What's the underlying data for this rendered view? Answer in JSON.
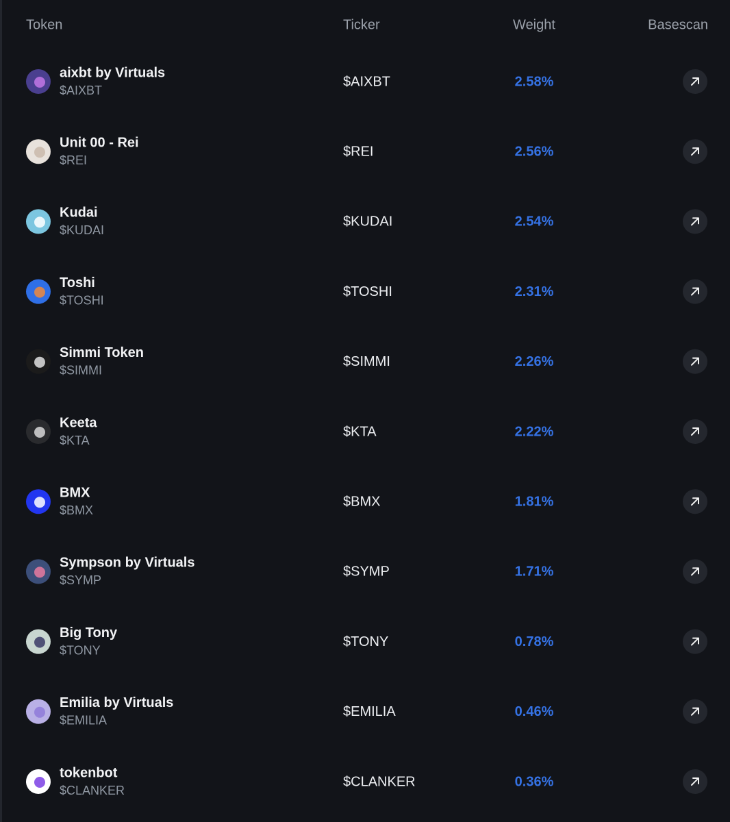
{
  "table": {
    "header": [
      "Token",
      "Ticker",
      "Weight",
      "Basescan"
    ],
    "rows": [
      {
        "name": "aixbt by Virtuals",
        "symbol": "$AIXBT",
        "ticker": "$AIXBT",
        "weight": "2.58%"
      },
      {
        "name": "Unit 00 - Rei",
        "symbol": "$REI",
        "ticker": "$REI",
        "weight": "2.56%"
      },
      {
        "name": "Kudai",
        "symbol": "$KUDAI",
        "ticker": "$KUDAI",
        "weight": "2.54%"
      },
      {
        "name": "Toshi",
        "symbol": "$TOSHI",
        "ticker": "$TOSHI",
        "weight": "2.31%"
      },
      {
        "name": "Simmi Token",
        "symbol": "$SIMMI",
        "ticker": "$SIMMI",
        "weight": "2.26%"
      },
      {
        "name": "Keeta",
        "symbol": "$KTA",
        "ticker": "$KTA",
        "weight": "2.22%"
      },
      {
        "name": "BMX",
        "symbol": "$BMX",
        "ticker": "$BMX",
        "weight": "1.81%"
      },
      {
        "name": "Sympson by Virtuals",
        "symbol": "$SYMP",
        "ticker": "$SYMP",
        "weight": "1.71%"
      },
      {
        "name": "Big Tony",
        "symbol": "$TONY",
        "ticker": "$TONY",
        "weight": "0.78%"
      },
      {
        "name": "Emilia by Virtuals",
        "symbol": "$EMILIA",
        "ticker": "$EMILIA",
        "weight": "0.46%"
      },
      {
        "name": "tokenbot",
        "symbol": "$CLANKER",
        "ticker": "$CLANKER",
        "weight": "0.36%"
      }
    ]
  }
}
